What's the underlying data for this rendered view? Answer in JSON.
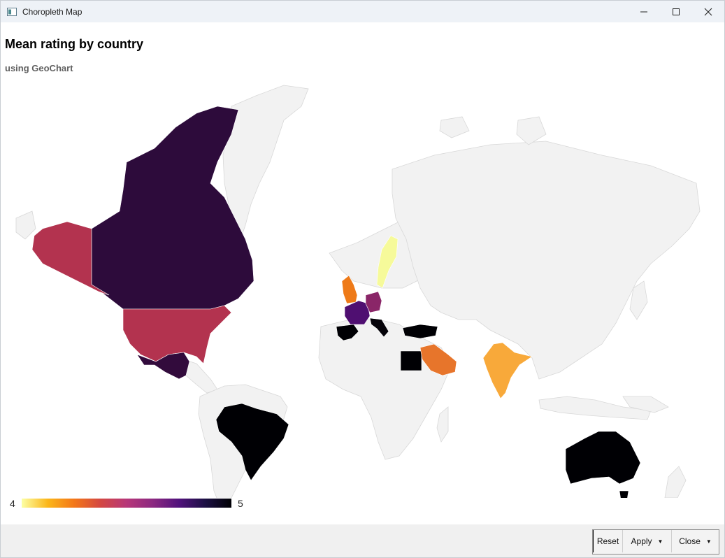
{
  "window": {
    "title": "Choropleth Map",
    "controls": [
      "minimize-icon",
      "maximize-icon",
      "close-icon"
    ]
  },
  "chart_data": {
    "type": "map",
    "title": "Mean rating by country",
    "subtitle": "using GeoChart",
    "colorscale": {
      "min": 4,
      "max": 5,
      "min_label": "4",
      "max_label": "5",
      "colors": [
        "#fcffa4",
        "#fbb61a",
        "#f37719",
        "#d44842",
        "#b73779",
        "#8c2981",
        "#51127c",
        "#1c1044",
        "#000004"
      ]
    },
    "regions": [
      {
        "country": "Canada",
        "value": 4.95,
        "color": "#2d0b3b"
      },
      {
        "country": "United States",
        "value": 4.55,
        "color": "#b3334f"
      },
      {
        "country": "Mexico",
        "value": 4.93,
        "color": "#320b3c"
      },
      {
        "country": "Brazil",
        "value": 5.0,
        "color": "#000004"
      },
      {
        "country": "United Kingdom",
        "value": 4.3,
        "color": "#ee7a18"
      },
      {
        "country": "France",
        "value": 4.85,
        "color": "#4f0f71"
      },
      {
        "country": "Germany",
        "value": 4.68,
        "color": "#8a2668"
      },
      {
        "country": "Sweden",
        "value": 4.02,
        "color": "#f6fa9a"
      },
      {
        "country": "Spain",
        "value": 5.0,
        "color": "#000004"
      },
      {
        "country": "Italy",
        "value": 5.0,
        "color": "#050309"
      },
      {
        "country": "Turkey",
        "value": 5.0,
        "color": "#000004"
      },
      {
        "country": "Egypt",
        "value": 5.0,
        "color": "#000004"
      },
      {
        "country": "Saudi Arabia",
        "value": 4.3,
        "color": "#e7752b"
      },
      {
        "country": "India",
        "value": 4.2,
        "color": "#f8a93a"
      },
      {
        "country": "Australia",
        "value": 5.0,
        "color": "#000004"
      }
    ],
    "background_land_color": "#f2f2f2",
    "background_border_color": "#d8d8d8"
  },
  "buttons": {
    "reset": "Reset",
    "apply": "Apply",
    "close": "Close"
  }
}
